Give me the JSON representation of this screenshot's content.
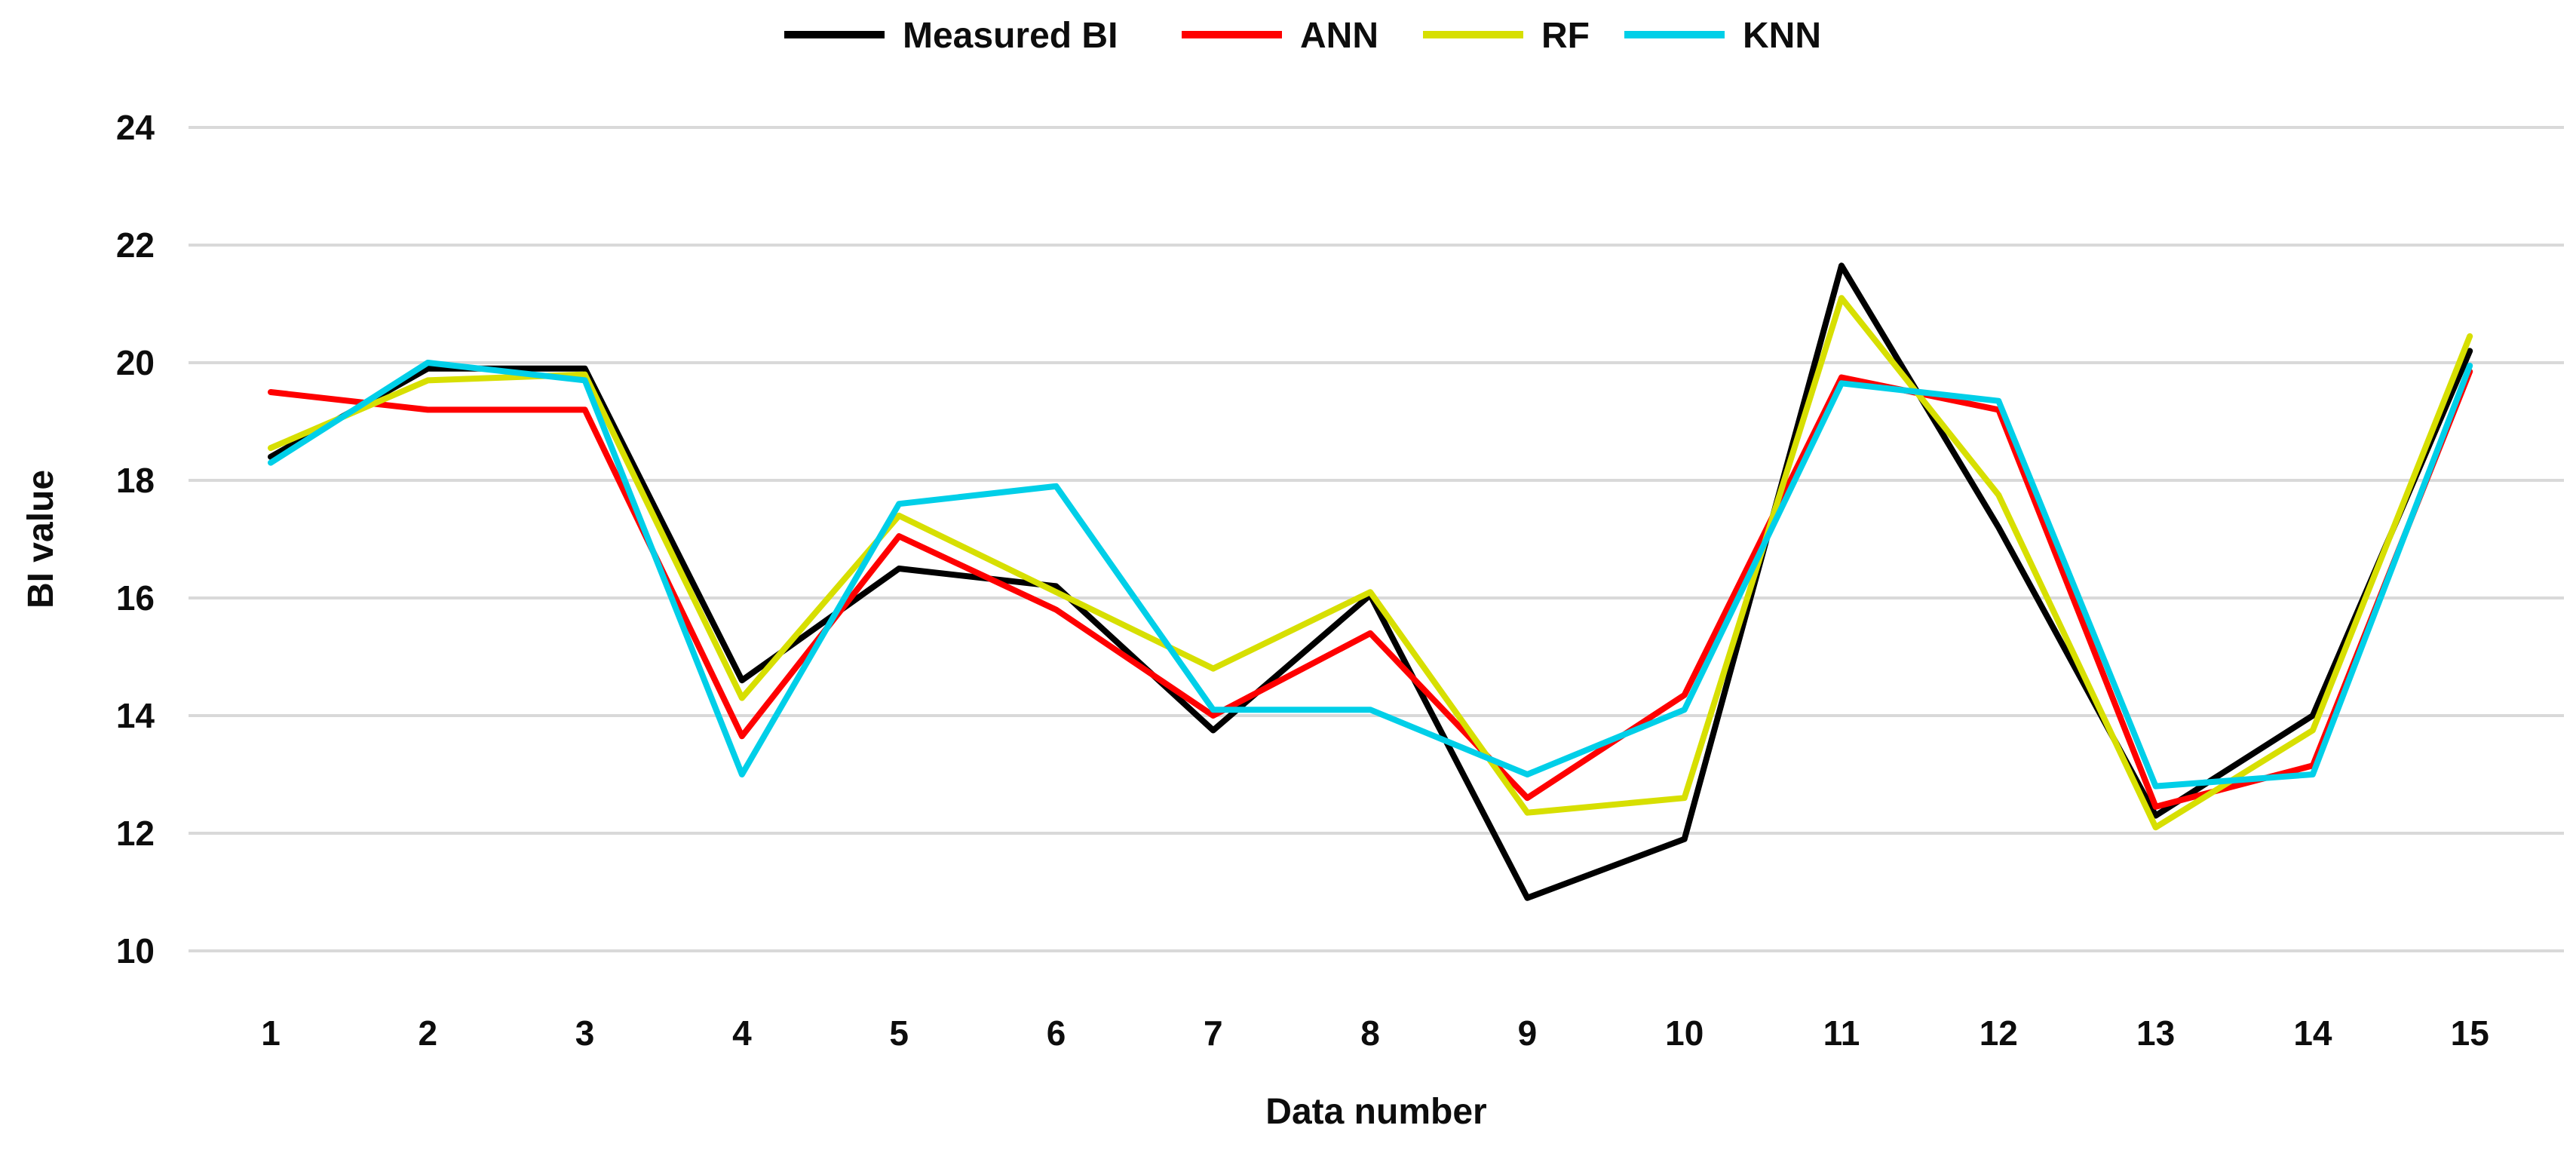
{
  "chart_data": {
    "type": "line",
    "title": "",
    "xlabel": "Data number",
    "ylabel": "BI value",
    "categories": [
      1,
      2,
      3,
      4,
      5,
      6,
      7,
      8,
      9,
      10,
      11,
      12,
      13,
      14,
      15
    ],
    "y_ticks": [
      24,
      22,
      20,
      18,
      16,
      14,
      12,
      10
    ],
    "ylim": [
      10,
      24
    ],
    "grid": "horizontal-only",
    "grid_color": "#d9d9d9",
    "text_color": "#0d0d0d",
    "legend_position": "top-center",
    "series": [
      {
        "name": "Measured BI",
        "color": "#000000",
        "values": [
          18.4,
          19.9,
          19.9,
          14.6,
          16.5,
          16.2,
          13.75,
          16.05,
          10.9,
          11.9,
          21.65,
          17.2,
          12.3,
          14.0,
          20.2
        ]
      },
      {
        "name": "ANN",
        "color": "#fe0000",
        "values": [
          19.5,
          19.2,
          19.2,
          13.65,
          17.05,
          15.8,
          14.0,
          15.4,
          12.6,
          14.35,
          19.75,
          19.2,
          12.45,
          13.15,
          19.85
        ]
      },
      {
        "name": "RF",
        "color": "#d7df01",
        "values": [
          18.55,
          19.7,
          19.8,
          14.3,
          17.4,
          16.1,
          14.8,
          16.1,
          12.35,
          12.6,
          21.1,
          17.75,
          12.1,
          13.75,
          20.45
        ]
      },
      {
        "name": "KNN",
        "color": "#00cfe8",
        "values": [
          18.3,
          20.0,
          19.7,
          13.0,
          17.6,
          17.9,
          14.1,
          14.1,
          13.0,
          14.1,
          19.65,
          19.35,
          12.8,
          13.0,
          19.95
        ]
      }
    ]
  }
}
